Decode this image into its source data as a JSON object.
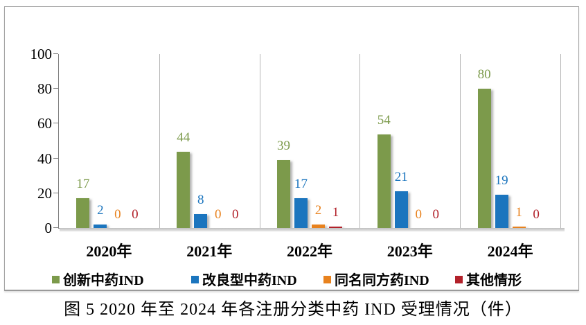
{
  "chart_data": {
    "type": "bar",
    "categories": [
      "2020年",
      "2021年",
      "2022年",
      "2023年",
      "2024年"
    ],
    "series": [
      {
        "name": "创新中药IND",
        "color": "#7C9A4B",
        "values": [
          17,
          44,
          39,
          54,
          80
        ]
      },
      {
        "name": "改良型中药IND",
        "color": "#1B75BE",
        "values": [
          2,
          8,
          17,
          21,
          19
        ]
      },
      {
        "name": "同名同方药IND",
        "color": "#E8821E",
        "values": [
          0,
          0,
          2,
          0,
          1
        ]
      },
      {
        "name": "其他情形",
        "color": "#B2212A",
        "values": [
          0,
          0,
          1,
          0,
          0
        ]
      }
    ],
    "ylim": [
      0,
      100
    ],
    "yticks": [
      0,
      20,
      40,
      60,
      80,
      100
    ],
    "grid": "vertical-category-separators",
    "legend_position": "bottom-inside",
    "data_labels": "colored-by-series"
  },
  "caption": "图 5  2020 年至 2024 年各注册分类中药 IND 受理情况（件）"
}
